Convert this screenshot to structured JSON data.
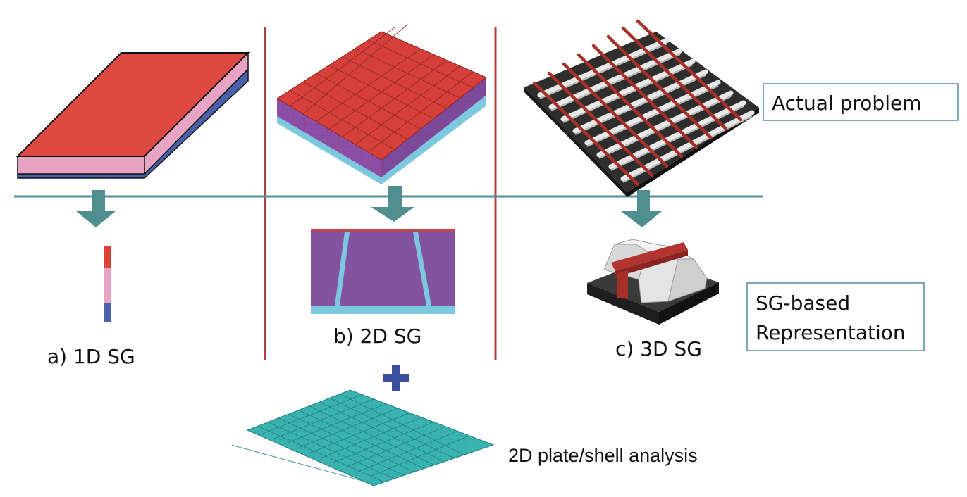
{
  "labels": {
    "sg_1d": "a) 1D SG",
    "sg_2d": "b) 2D SG",
    "sg_3d": "c) 3D SG",
    "actual_problem": "Actual problem",
    "sg_based_line1": "SG-based",
    "sg_based_line2": "Representation",
    "plate_analysis": "2D plate/shell analysis"
  },
  "colors": {
    "divider": "#b0403d",
    "horizon": "#4e8f99",
    "arrow": "#4f8f90",
    "plus": "#3a4fa0",
    "red_face": "#de4a41",
    "pink_layer": "#e7a3c2",
    "blue_layer": "#4a60a8",
    "purple": "#8453a0",
    "cyan": "#7cc8de",
    "teal_mesh": "#39b1b0",
    "box_border": "#4e8f99"
  },
  "icons": {
    "down_arrow": "down-arrow-icon",
    "plus": "plus-icon"
  }
}
